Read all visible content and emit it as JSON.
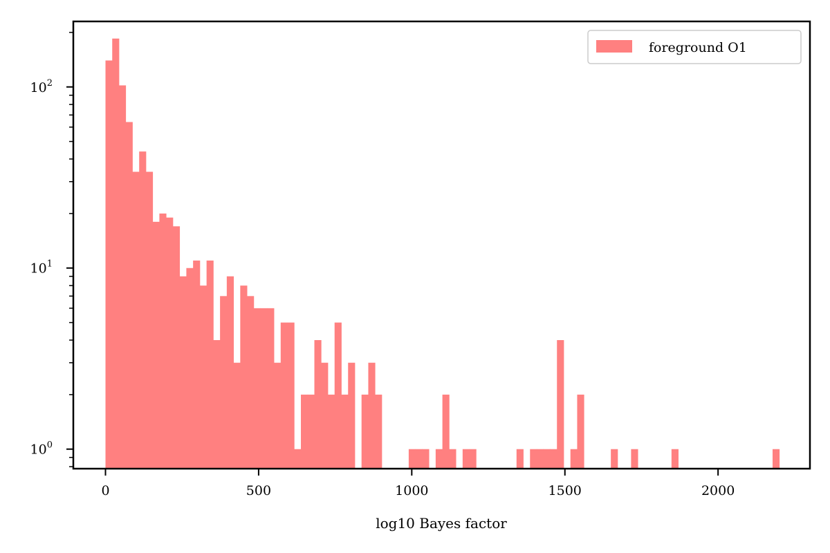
{
  "chart_data": {
    "type": "bar",
    "subtype": "histogram",
    "title": "",
    "xlabel": "log10 Bayes factor",
    "ylabel": "",
    "y_scale": "log",
    "xlim": [
      -105,
      2300
    ],
    "ylim": [
      0.78,
      230
    ],
    "x_ticks": [
      {
        "value": 0,
        "label": "0"
      },
      {
        "value": 500,
        "label": "500"
      },
      {
        "value": 1000,
        "label": "1000"
      },
      {
        "value": 1500,
        "label": "1500"
      },
      {
        "value": 2000,
        "label": "2000"
      }
    ],
    "y_ticks": [
      {
        "value": 1,
        "base": "10",
        "exp": "0"
      },
      {
        "value": 10,
        "base": "10",
        "exp": "1"
      },
      {
        "value": 100,
        "base": "10",
        "exp": "2"
      }
    ],
    "grid": false,
    "legend_position": "top-right",
    "bin_width": 22,
    "series": [
      {
        "name": "foreground O1",
        "color": "#ff8080",
        "bin_start": 0,
        "counts": [
          140,
          185,
          102,
          64,
          34,
          44,
          34,
          18,
          20,
          19,
          17,
          9,
          10,
          11,
          8,
          11,
          4,
          7,
          9,
          3,
          8,
          7,
          6,
          6,
          6,
          3,
          5,
          5,
          1,
          2,
          2,
          4,
          3,
          2,
          5,
          2,
          3,
          0,
          2,
          3,
          2,
          0,
          0,
          0,
          0,
          0,
          0,
          0,
          0,
          0,
          0,
          0,
          0,
          0,
          0,
          0,
          0,
          0,
          0,
          0,
          0,
          0,
          0,
          0,
          0,
          0,
          0,
          0,
          0,
          0,
          0,
          0,
          0,
          0,
          0,
          0,
          0,
          0,
          0,
          0,
          0,
          0,
          0,
          0,
          0,
          0,
          0,
          0,
          0,
          0,
          0,
          0,
          0,
          0,
          0,
          0,
          0,
          0,
          0,
          0,
          0
        ]
      }
    ],
    "tail_bins": [
      {
        "bin": 45,
        "count": 1
      },
      {
        "bin": 46,
        "count": 1
      },
      {
        "bin": 47,
        "count": 1
      },
      {
        "bin": 49,
        "count": 1
      },
      {
        "bin": 50,
        "count": 2
      },
      {
        "bin": 51,
        "count": 1
      },
      {
        "bin": 53,
        "count": 1
      },
      {
        "bin": 54,
        "count": 1
      },
      {
        "bin": 61,
        "count": 1
      },
      {
        "bin": 63,
        "count": 1
      },
      {
        "bin": 64,
        "count": 1
      },
      {
        "bin": 65,
        "count": 1
      },
      {
        "bin": 66,
        "count": 1
      },
      {
        "bin": 67,
        "count": 4
      },
      {
        "bin": 69,
        "count": 1
      },
      {
        "bin": 70,
        "count": 2
      },
      {
        "bin": 75,
        "count": 1
      },
      {
        "bin": 78,
        "count": 1
      },
      {
        "bin": 84,
        "count": 1
      },
      {
        "bin": 99,
        "count": 1
      }
    ]
  }
}
